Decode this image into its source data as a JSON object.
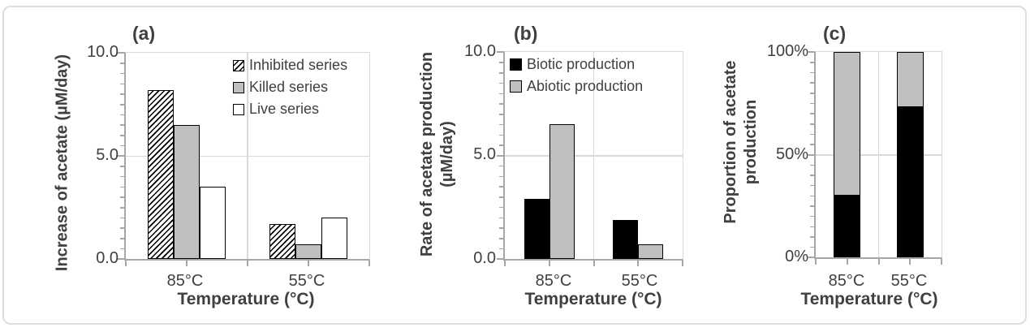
{
  "figure": {
    "background": "#ffffff",
    "frame_border_color": "#dedede"
  },
  "colors": {
    "text": "#404040",
    "axis_line": "#a6a6a6",
    "gridline": "#d9d9d9",
    "bar_black": "#000000",
    "bar_gray": "#bfbfbf",
    "bar_white": "#ffffff",
    "bar_border": "#000000"
  },
  "chart_data": [
    {
      "id": "a",
      "type": "bar",
      "panel_label": "(a)",
      "ylabel": "Increase of acetate (µM/day)",
      "ylabel_lines": [
        "Increase of acetate (µM/day)"
      ],
      "xlabel": "Temperature (°C)",
      "categories": [
        "85°C",
        "55°C"
      ],
      "series": [
        {
          "name": "Inhibited series",
          "fill": "hatch",
          "values": [
            8.2,
            1.7
          ]
        },
        {
          "name": "Killed series",
          "fill": "gray",
          "values": [
            6.5,
            0.7
          ]
        },
        {
          "name": "Live series",
          "fill": "white",
          "values": [
            3.5,
            2.0
          ]
        }
      ],
      "ylim": [
        0,
        10
      ],
      "yticks": [
        "0.0",
        "5.0",
        "10.0"
      ],
      "ytick_values": [
        0,
        5,
        10
      ],
      "minor_tick_step": 0.5,
      "grid": true,
      "legend_position": "top-right-inside"
    },
    {
      "id": "b",
      "type": "bar",
      "panel_label": "(b)",
      "ylabel": "Rate of acetate production (µM/day)",
      "ylabel_lines": [
        "Rate of acetate production",
        "(µM/day)"
      ],
      "xlabel": "Temperature (°C)",
      "categories": [
        "85°C",
        "55°C"
      ],
      "series": [
        {
          "name": "Biotic production",
          "fill": "black",
          "values": [
            2.9,
            1.9
          ]
        },
        {
          "name": "Abiotic production",
          "fill": "gray",
          "values": [
            6.5,
            0.7
          ]
        }
      ],
      "ylim": [
        0,
        10
      ],
      "yticks": [
        "0.0",
        "5.0",
        "10.0"
      ],
      "ytick_values": [
        0,
        5,
        10
      ],
      "minor_tick_step": 0.5,
      "grid": true,
      "legend_position": "top-inside"
    },
    {
      "id": "c",
      "type": "stacked-bar",
      "panel_label": "(c)",
      "ylabel": "Proportion of acetate production",
      "ylabel_lines": [
        "Proportion of acetate",
        "production"
      ],
      "xlabel": "Temperature (°C)",
      "categories": [
        "85°C",
        "55°C"
      ],
      "series": [
        {
          "name": "Biotic production",
          "fill": "black",
          "values": [
            30,
            73
          ]
        },
        {
          "name": "Abiotic production",
          "fill": "gray",
          "values": [
            70,
            27
          ]
        }
      ],
      "ylim": [
        0,
        100
      ],
      "yticks": [
        "0%",
        "50%",
        "100%"
      ],
      "ytick_values": [
        0,
        50,
        100
      ],
      "minor_tick_step": 5,
      "grid": true,
      "legend_position": "none"
    }
  ]
}
